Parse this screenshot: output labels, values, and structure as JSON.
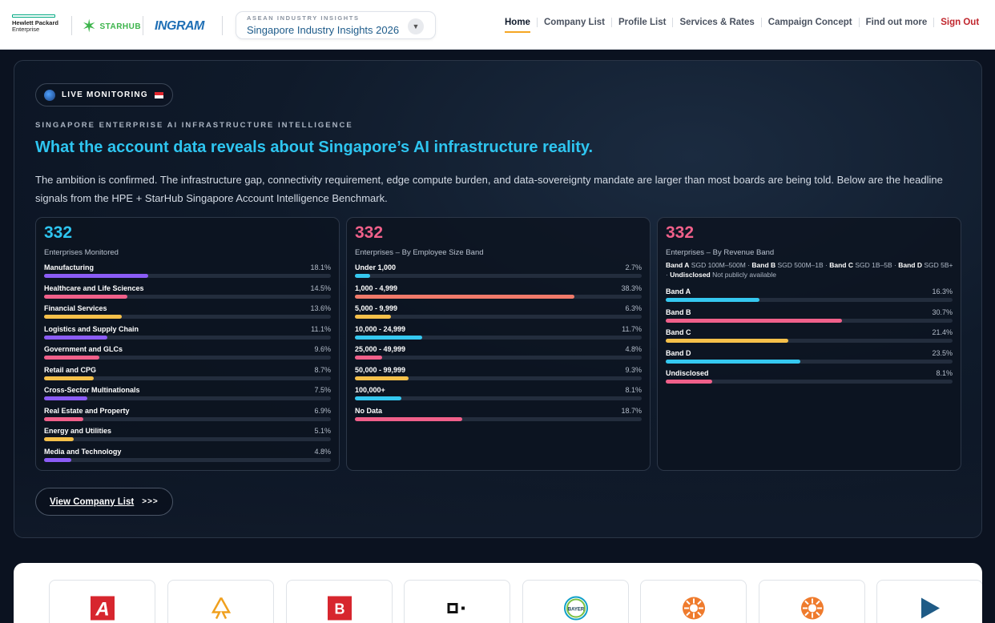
{
  "brand": {
    "hpe_line1": "Hewlett Packard",
    "hpe_line2": "Enterprise",
    "starhub": "STARHUB",
    "ingram": "INGRAM"
  },
  "selector": {
    "label": "ASEAN INDUSTRY INSIGHTS",
    "value": "Singapore Industry Insights 2026"
  },
  "nav": {
    "items": [
      "Home",
      "Company List",
      "Profile List",
      "Services & Rates",
      "Campaign Concept",
      "Find out more"
    ],
    "signout": "Sign Out",
    "active": "Home"
  },
  "hero": {
    "pill": "LIVE MONITORING",
    "eyebrow": "SINGAPORE ENTERPRISE AI INFRASTRUCTURE INTELLIGENCE",
    "headline": "What the account data reveals about Singapore’s AI infrastructure reality.",
    "lede": "The ambition is confirmed. The infrastructure gap, connectivity requirement, edge compute burden, and data-sovereignty mandate are larger than most boards are being told. Below are the headline signals from the HPE + StarHub Singapore Account Intelligence Benchmark.",
    "cta": "View Company List",
    "cta_arrows": ">>>"
  },
  "colors": {
    "purple": "#8b5cf6",
    "pink": "#f0608a",
    "yellow": "#f5c04a",
    "cyan": "#35c8f0",
    "salmon": "#f07a6a",
    "accent_blue": "#2ec5f0",
    "accent_pink": "#f0608a"
  },
  "cards": [
    {
      "count": "332",
      "count_color": "#2ec5f0",
      "subtitle": "Enterprises Monitored",
      "rows": [
        {
          "label": "Manufacturing",
          "pct": "18.1%",
          "value": 18.1,
          "color": "#8b5cf6"
        },
        {
          "label": "Healthcare and Life Sciences",
          "pct": "14.5%",
          "value": 14.5,
          "color": "#f0608a"
        },
        {
          "label": "Financial Services",
          "pct": "13.6%",
          "value": 13.6,
          "color": "#f5c04a"
        },
        {
          "label": "Logistics and Supply Chain",
          "pct": "11.1%",
          "value": 11.1,
          "color": "#8b5cf6"
        },
        {
          "label": "Government and GLCs",
          "pct": "9.6%",
          "value": 9.6,
          "color": "#f0608a"
        },
        {
          "label": "Retail and CPG",
          "pct": "8.7%",
          "value": 8.7,
          "color": "#f5c04a"
        },
        {
          "label": "Cross-Sector Multinationals",
          "pct": "7.5%",
          "value": 7.5,
          "color": "#8b5cf6"
        },
        {
          "label": "Real Estate and Property",
          "pct": "6.9%",
          "value": 6.9,
          "color": "#f0608a"
        },
        {
          "label": "Energy and Utilities",
          "pct": "5.1%",
          "value": 5.1,
          "color": "#f5c04a"
        },
        {
          "label": "Media and Technology",
          "pct": "4.8%",
          "value": 4.8,
          "color": "#8b5cf6"
        }
      ]
    },
    {
      "count": "332",
      "count_color": "#f0608a",
      "subtitle": "Enterprises – By Employee Size Band",
      "rows": [
        {
          "label": "Under 1,000",
          "pct": "2.7%",
          "value": 2.7,
          "color": "#35c8f0"
        },
        {
          "label": "1,000 - 4,999",
          "pct": "38.3%",
          "value": 38.3,
          "color": "#f07a6a"
        },
        {
          "label": "5,000 - 9,999",
          "pct": "6.3%",
          "value": 6.3,
          "color": "#f5c04a"
        },
        {
          "label": "10,000 - 24,999",
          "pct": "11.7%",
          "value": 11.7,
          "color": "#35c8f0"
        },
        {
          "label": "25,000 - 49,999",
          "pct": "4.8%",
          "value": 4.8,
          "color": "#f0608a"
        },
        {
          "label": "50,000 - 99,999",
          "pct": "9.3%",
          "value": 9.3,
          "color": "#f5c04a"
        },
        {
          "label": "100,000+",
          "pct": "8.1%",
          "value": 8.1,
          "color": "#35c8f0"
        },
        {
          "label": "No Data",
          "pct": "18.7%",
          "value": 18.7,
          "color": "#f0608a"
        }
      ]
    },
    {
      "count": "332",
      "count_color": "#f0608a",
      "subtitle": "Enterprises – By Revenue Band",
      "legend": [
        {
          "key": "Band A",
          "desc": "SGD 100M–500M"
        },
        {
          "key": "Band B",
          "desc": "SGD 500M–1B"
        },
        {
          "key": "Band C",
          "desc": "SGD 1B–5B"
        },
        {
          "key": "Band D",
          "desc": "SGD 5B+"
        },
        {
          "key": "Undisclosed",
          "desc": "Not publicly available"
        }
      ],
      "rows": [
        {
          "label": "Band A",
          "pct": "16.3%",
          "value": 16.3,
          "color": "#35c8f0"
        },
        {
          "label": "Band B",
          "pct": "30.7%",
          "value": 30.7,
          "color": "#f0608a"
        },
        {
          "label": "Band C",
          "pct": "21.4%",
          "value": 21.4,
          "color": "#f5c04a"
        },
        {
          "label": "Band D",
          "pct": "23.5%",
          "value": 23.5,
          "color": "#35c8f0"
        },
        {
          "label": "Undisclosed",
          "pct": "8.1%",
          "value": 8.1,
          "color": "#f0608a"
        }
      ]
    }
  ],
  "logo_tiles": [
    {
      "name": "avery-logo",
      "text": "A",
      "color": "#d7262e"
    },
    {
      "name": "astrazeneca-logo",
      "text": "",
      "color": "#f0a01e"
    },
    {
      "name": "b-logo",
      "text": "B",
      "color": "#d7262e"
    },
    {
      "name": "square-logo",
      "text": "",
      "color": "#111111"
    },
    {
      "name": "bayer-logo",
      "text": "BAYER",
      "color": "#10a0c8"
    },
    {
      "name": "sun-logo-1",
      "text": "",
      "color": "#ef7b2d"
    },
    {
      "name": "sun-logo-2",
      "text": "",
      "color": "#ef7b2d"
    },
    {
      "name": "play-logo",
      "text": "",
      "color": "#1f5b86"
    }
  ]
}
